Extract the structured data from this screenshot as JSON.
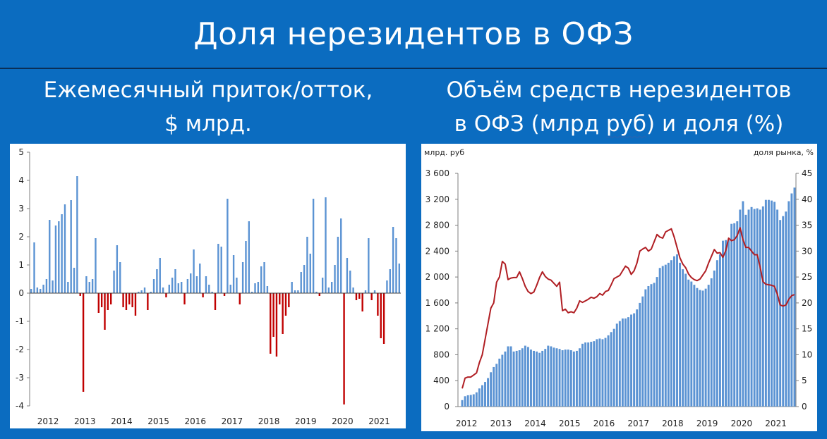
{
  "title": "Доля нерезидентов в ОФЗ",
  "subtitle_left": [
    "Ежемесячный приток/отток,",
    "$ млрд."
  ],
  "subtitle_right": [
    "Объём средств нерезидентов",
    "в ОФЗ (млрд руб) и доля (%)"
  ],
  "colors": {
    "background": "#0b6cc0",
    "positive_bar": "#5b93d3",
    "negative_bar": "#c00000",
    "stock_bar": "#5b93d3",
    "share_line": "#b01e23"
  },
  "chart_data": [
    {
      "type": "bar",
      "ylim": [
        -4,
        5
      ],
      "y_ticks": [
        "5",
        "4",
        "3",
        "2",
        "1",
        "0",
        "-1",
        "-2",
        "-3",
        "-4"
      ],
      "x_tick_labels": [
        "2012",
        "2013",
        "2014",
        "2015",
        "2016",
        "2017",
        "2018",
        "2019",
        "2020",
        "2021"
      ],
      "start": "2012-01",
      "values": [
        0.15,
        1.8,
        0.2,
        0.15,
        0.3,
        0.5,
        2.6,
        0.45,
        2.4,
        2.55,
        2.8,
        3.15,
        0.4,
        3.3,
        0.9,
        4.15,
        -0.1,
        -3.5,
        0.6,
        0.4,
        0.5,
        1.95,
        -0.7,
        -0.5,
        -1.3,
        -0.6,
        -0.4,
        0.8,
        1.7,
        1.1,
        -0.5,
        -0.6,
        -0.4,
        -0.5,
        -0.8,
        0.05,
        0.1,
        0.2,
        -0.6,
        0.05,
        0.5,
        0.85,
        1.25,
        0.2,
        -0.15,
        0.3,
        0.55,
        0.85,
        0.35,
        0.4,
        -0.4,
        0.5,
        0.7,
        1.55,
        0.6,
        1.05,
        -0.15,
        0.6,
        0.3,
        0.05,
        -0.6,
        1.75,
        1.65,
        -0.1,
        3.35,
        0.3,
        1.35,
        0.55,
        -0.4,
        1.1,
        1.85,
        2.55,
        0.05,
        0.35,
        0.4,
        0.95,
        1.1,
        0.25,
        -2.15,
        -1.55,
        -2.25,
        -0.4,
        -1.45,
        -0.8,
        -0.5,
        0.4,
        0.1,
        0.1,
        0.75,
        1.0,
        2.0,
        1.4,
        3.35,
        0.05,
        -0.1,
        0.55,
        3.4,
        0.2,
        0.4,
        1.0,
        2.0,
        2.65,
        -3.95,
        1.25,
        0.8,
        0.2,
        -0.25,
        -0.2,
        -0.65,
        0.1,
        1.95,
        -0.25,
        0.1,
        -0.8,
        -1.6,
        -1.8,
        0.45,
        0.85,
        2.35,
        1.95,
        1.05
      ]
    },
    {
      "type": "bar+line",
      "y_left_label": "млрд. руб",
      "y_right_label": "доля рынка, %",
      "ylim_left": [
        0,
        3600
      ],
      "ylim_right": [
        0,
        45
      ],
      "y_left_ticks": [
        "3 600",
        "3 200",
        "2 800",
        "2 400",
        "2 000",
        "1 600",
        "1 200",
        "800",
        "400",
        "0"
      ],
      "y_right_ticks": [
        "45",
        "40",
        "35",
        "30",
        "25",
        "20",
        "15",
        "10",
        "5",
        "0"
      ],
      "x_tick_labels": [
        "2012",
        "2013",
        "2014",
        "2015",
        "2016",
        "2017",
        "2018",
        "2019",
        "2020",
        "2021"
      ],
      "start": "2012-01",
      "series": [
        {
          "type": "bar",
          "values": [
            100,
            160,
            175,
            180,
            190,
            220,
            280,
            330,
            380,
            440,
            530,
            610,
            660,
            740,
            800,
            850,
            930,
            930,
            850,
            860,
            870,
            900,
            940,
            920,
            880,
            860,
            850,
            830,
            860,
            890,
            940,
            930,
            910,
            900,
            890,
            870,
            880,
            880,
            870,
            850,
            860,
            900,
            970,
            990,
            990,
            1000,
            1010,
            1040,
            1050,
            1040,
            1060,
            1100,
            1150,
            1200,
            1280,
            1320,
            1360,
            1360,
            1380,
            1420,
            1440,
            1500,
            1600,
            1700,
            1810,
            1860,
            1890,
            1910,
            2000,
            2140,
            2170,
            2190,
            2220,
            2260,
            2320,
            2350,
            2220,
            2120,
            2050,
            1960,
            1930,
            1880,
            1830,
            1800,
            1790,
            1820,
            1880,
            1980,
            2100,
            2260,
            2350,
            2560,
            2570,
            2570,
            2820,
            2830,
            2860,
            3040,
            3170,
            2960,
            3040,
            3080,
            3050,
            3060,
            3040,
            3090,
            3190,
            3190,
            3180,
            3160,
            3040,
            2880,
            2940,
            3010,
            3170,
            3290,
            3380
          ]
        },
        {
          "type": "line",
          "values": [
            3.5,
            5.5,
            5.7,
            5.7,
            6.1,
            6.5,
            8.5,
            10.0,
            13.0,
            16.0,
            19.0,
            20.0,
            24.0,
            25.0,
            28.0,
            27.5,
            24.5,
            24.8,
            24.9,
            24.9,
            26.0,
            24.7,
            23.2,
            22.2,
            21.8,
            22.1,
            23.4,
            24.9,
            26.0,
            25.1,
            24.6,
            24.4,
            23.8,
            23.2,
            24.0,
            18.5,
            18.8,
            18.1,
            18.3,
            18.1,
            19.0,
            20.4,
            20.1,
            20.4,
            20.7,
            21.1,
            20.9,
            21.2,
            21.8,
            21.5,
            22.2,
            22.4,
            23.5,
            24.7,
            25.0,
            25.3,
            26.2,
            27.1,
            26.7,
            25.5,
            26.2,
            27.7,
            30.0,
            30.4,
            30.7,
            30.0,
            30.4,
            31.8,
            33.2,
            32.7,
            32.5,
            33.7,
            34.0,
            34.3,
            32.7,
            30.7,
            28.7,
            27.5,
            26.8,
            25.6,
            24.9,
            24.5,
            24.3,
            24.6,
            25.4,
            26.2,
            27.7,
            29.0,
            30.3,
            29.6,
            29.7,
            28.8,
            30.1,
            32.5,
            32.0,
            32.2,
            33.0,
            34.5,
            32.2,
            30.7,
            30.7,
            30.0,
            29.3,
            29.3,
            26.9,
            24.1,
            23.6,
            23.5,
            23.4,
            23.2,
            21.7,
            19.6,
            19.4,
            19.6,
            20.7,
            21.4,
            21.6
          ]
        }
      ]
    }
  ]
}
